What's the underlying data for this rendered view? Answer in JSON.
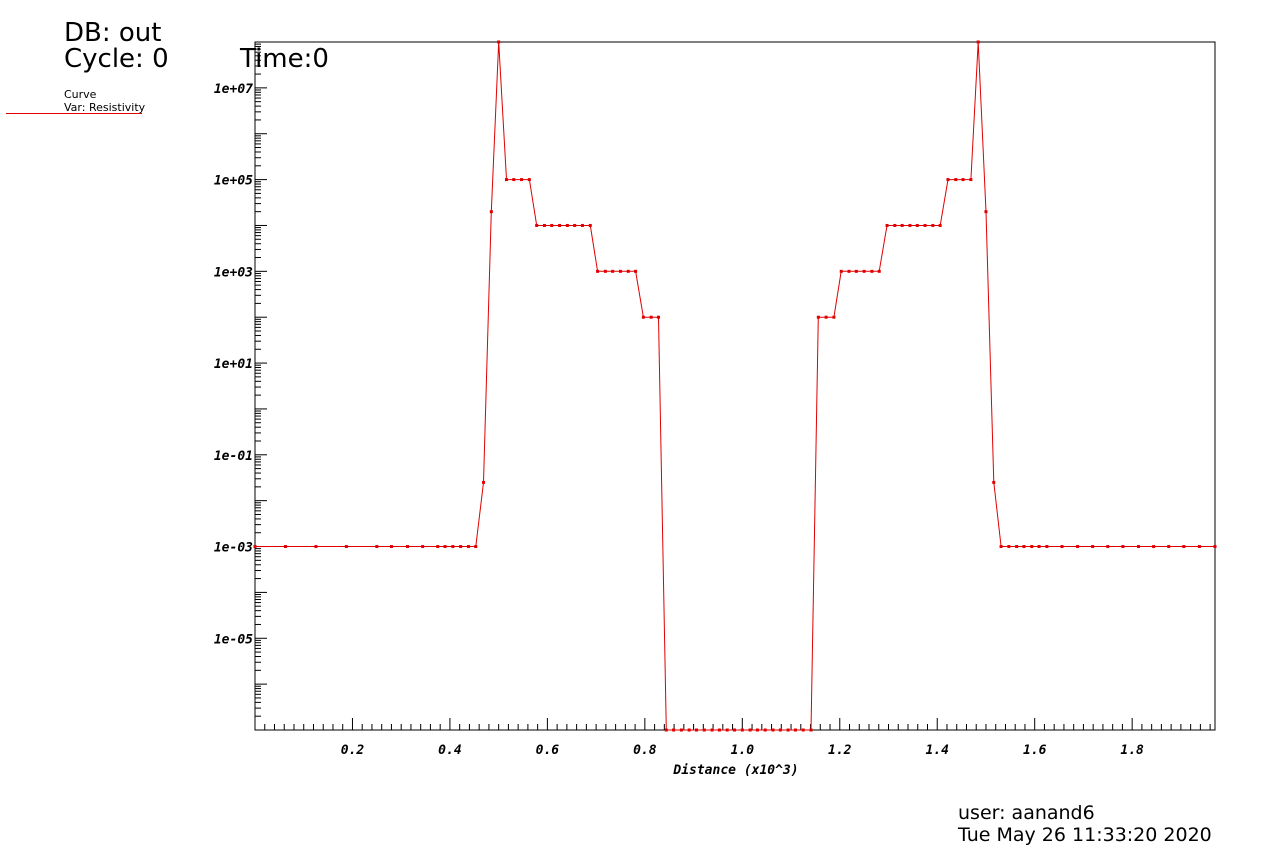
{
  "header": {
    "db": "DB: out",
    "cycle": "Cycle: 0",
    "time": "Time:0"
  },
  "legend": {
    "title": "Curve",
    "var": "Var: Resistivity",
    "color": "#e00000"
  },
  "footer": {
    "user": "user: aanand6",
    "date": "Tue May 26 11:33:20 2020"
  },
  "chart_data": {
    "type": "line",
    "xlabel": "Distance (x10^3)",
    "ylabel": "",
    "xlim": [
      0.0,
      1.97
    ],
    "ylim_log10": [
      -7,
      8
    ],
    "yscale": "log",
    "grid": false,
    "x_ticks": [
      0.2,
      0.4,
      0.6,
      0.8,
      1.0,
      1.2,
      1.4,
      1.6,
      1.8
    ],
    "x_tick_labels": [
      "0.2",
      "0.4",
      "0.6",
      "0.8",
      "1.0",
      "1.2",
      "1.4",
      "1.6",
      "1.8"
    ],
    "y_ticks_log10": [
      -5,
      -3,
      -1,
      1,
      3,
      5,
      7
    ],
    "y_tick_labels": [
      "1e-05",
      "1e-03",
      "1e-01",
      "1e+01",
      "1e+03",
      "1e+05",
      "1e+07"
    ],
    "series": [
      {
        "name": "Resistivity",
        "color": "#e00000",
        "x": [
          0.0,
          0.0625,
          0.125,
          0.1875,
          0.25,
          0.28,
          0.313,
          0.344,
          0.375,
          0.39,
          0.406,
          0.422,
          0.438,
          0.453,
          0.469,
          0.485,
          0.5,
          0.516,
          0.531,
          0.547,
          0.563,
          0.578,
          0.594,
          0.609,
          0.625,
          0.641,
          0.656,
          0.672,
          0.688,
          0.703,
          0.719,
          0.734,
          0.75,
          0.766,
          0.781,
          0.797,
          0.813,
          0.828,
          0.844,
          0.859,
          0.875,
          0.891,
          0.906,
          0.922,
          0.938,
          0.953,
          0.969,
          0.984,
          1.0,
          1.016,
          1.031,
          1.047,
          1.063,
          1.078,
          1.094,
          1.109,
          1.125,
          1.141,
          1.156,
          1.172,
          1.188,
          1.203,
          1.219,
          1.234,
          1.25,
          1.266,
          1.281,
          1.297,
          1.313,
          1.328,
          1.344,
          1.359,
          1.375,
          1.391,
          1.406,
          1.422,
          1.438,
          1.453,
          1.469,
          1.484,
          1.5,
          1.516,
          1.531,
          1.547,
          1.563,
          1.578,
          1.594,
          1.609,
          1.625,
          1.656,
          1.688,
          1.719,
          1.75,
          1.781,
          1.813,
          1.844,
          1.875,
          1.906,
          1.938,
          1.97
        ],
        "y": [
          0.001,
          0.001,
          0.001,
          0.001,
          0.001,
          0.001,
          0.001,
          0.001,
          0.001,
          0.001,
          0.001,
          0.001,
          0.001,
          0.001,
          0.025,
          20000,
          100000000,
          100000,
          100000,
          100000,
          100000,
          10000,
          10000,
          10000,
          10000,
          10000,
          10000,
          10000,
          10000,
          1000,
          1000,
          1000,
          1000,
          1000,
          1000,
          100,
          100,
          100,
          1e-07,
          1e-07,
          1e-07,
          1e-07,
          1e-07,
          1e-07,
          1e-07,
          1e-07,
          1e-07,
          1e-07,
          1e-07,
          1e-07,
          1e-07,
          1e-07,
          1e-07,
          1e-07,
          1e-07,
          1e-07,
          1e-07,
          1e-07,
          100,
          100,
          100,
          1000,
          1000,
          1000,
          1000,
          1000,
          1000,
          10000,
          10000,
          10000,
          10000,
          10000,
          10000,
          10000,
          10000,
          100000,
          100000,
          100000,
          100000,
          100000000,
          20000,
          0.025,
          0.001,
          0.001,
          0.001,
          0.001,
          0.001,
          0.001,
          0.001,
          0.001,
          0.001,
          0.001,
          0.001,
          0.001,
          0.001,
          0.001,
          0.001,
          0.001,
          0.001,
          0.001
        ]
      }
    ]
  }
}
